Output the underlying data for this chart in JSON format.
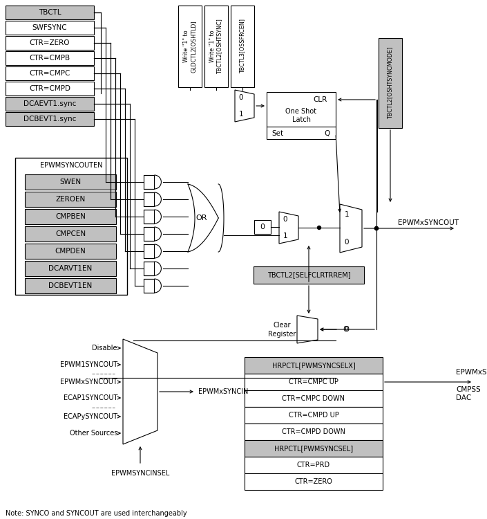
{
  "note": "Note: SYNCO and SYNCOUT are used interchangeably",
  "left_signals": [
    "TBCTL",
    "SWFSYNC",
    "CTR=ZERO",
    "CTR=CMPB",
    "CTR=CMPC",
    "CTR=CMPD",
    "DCAEVT1.sync",
    "DCBEVT1.sync"
  ],
  "left_gray": [
    true,
    false,
    false,
    false,
    false,
    false,
    true,
    true
  ],
  "en_box_label": "EPWMSYNCOUTEN",
  "en_signals": [
    "SWEN",
    "ZEROEN",
    "CMPBEN",
    "CMPCEN",
    "CMPDEN",
    "DCARVT1EN",
    "DCBEVT1EN"
  ],
  "top_box1": "Write \"1\" to\nGLDCTL2[OSHTLD]",
  "top_box2": "Write \"1\" to\nTBCTL2[OSHTSYNC]",
  "top_box3": "TBCTL3[OSSFRCEN]",
  "tbctl2_syncmode": "TBCTL2[OSHTSYNCMODE]",
  "selfclr_label": "TBCTL2[SELFCLRTRREM]",
  "syncout_label": "EPWMxSYNCOUT",
  "or_label": "OR",
  "bottom_inputs": [
    "Disable",
    "EPWM1SYNCOUT",
    "EPWMxSYNCOUT",
    "ECAP1SYNCOUT",
    "ECAPySYNCOUT",
    "Other Sources"
  ],
  "syncin_label": "EPWMxSYNCIN",
  "syncinsel_label": "EPWMSYNCINSEL",
  "clearreg_label": "Clear\nRegister",
  "hrpctl_box": "HRPCTL[PWMSYNCSELX]",
  "hrpctl2_box": "HRPCTL[PWMSYNCSEL]",
  "bottom_right_rows": [
    "CTR=CMPC UP",
    "CTR=CMPC DOWN",
    "CTR=CMPD UP",
    "CTR=CMPD DOWN",
    "HRPCTL[PWMSYNCSEL]",
    "CTR=PRD",
    "CTR=ZERO"
  ],
  "syncper_label": "EPWMxSYNCPER",
  "cmpss_dac_label": "CMPSS\nDAC",
  "white": "#ffffff",
  "gray": "#c0c0c0",
  "black": "#000000"
}
